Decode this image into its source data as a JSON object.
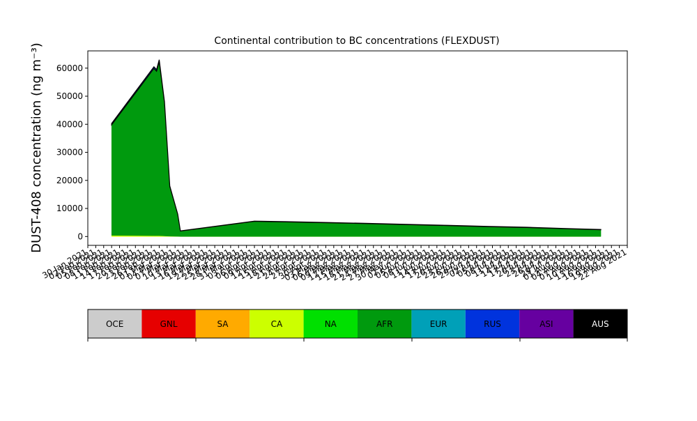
{
  "chart_data": {
    "type": "stacked_area",
    "title": "Continental contribution to BC concentrations (FLEXDUST)",
    "y_label": "DUST-408 concentration (ng m⁻³)",
    "x": [
      "2021-02-08",
      "2021-02-24",
      "2021-02-25",
      "2021-02-26",
      "2021-02-28",
      "2021-03-02",
      "2021-03-05",
      "2021-03-06",
      "2021-04-03",
      "2021-04-15",
      "2021-05-01",
      "2021-05-15",
      "2021-06-01",
      "2021-06-15",
      "2021-07-01",
      "2021-07-15",
      "2021-08-01",
      "2021-08-12"
    ],
    "series": [
      {
        "name": "CA",
        "color": "#ccff00",
        "values": [
          400,
          300,
          300,
          300,
          200,
          100,
          50,
          0,
          0,
          0,
          0,
          0,
          0,
          0,
          0,
          0,
          0,
          0
        ]
      },
      {
        "name": "AFR",
        "color": "#009a0e",
        "values": [
          39400,
          59600,
          58600,
          62100,
          47400,
          17700,
          7850,
          1950,
          5400,
          5200,
          4900,
          4600,
          4200,
          3900,
          3500,
          3200,
          2700,
          2400
        ]
      },
      {
        "name": "RUS",
        "color": "#0033dd",
        "values": [
          500,
          600,
          600,
          600,
          400,
          200,
          100,
          50,
          100,
          100,
          100,
          100,
          100,
          100,
          100,
          100,
          100,
          100
        ]
      }
    ],
    "xlim": [
      "2021-01-30",
      "2021-08-22"
    ],
    "xticks": [
      {
        "value": "2021-01-30",
        "label": "30 Jan 2021"
      },
      {
        "value": "2021-02-02",
        "label": "02 Feb 2021"
      },
      {
        "value": "2021-02-05",
        "label": "05 Feb 2021"
      },
      {
        "value": "2021-02-08",
        "label": "08 Feb 2021"
      },
      {
        "value": "2021-02-11",
        "label": "11 Feb 2021"
      },
      {
        "value": "2021-02-14",
        "label": "14 Feb 2021"
      },
      {
        "value": "2021-02-17",
        "label": "17 Feb 2021"
      },
      {
        "value": "2021-02-20",
        "label": "20 Feb 2021"
      },
      {
        "value": "2021-02-23",
        "label": "23 Feb 2021"
      },
      {
        "value": "2021-02-26",
        "label": "26 Feb 2021"
      },
      {
        "value": "2021-03-01",
        "label": "01 Mar 2021"
      },
      {
        "value": "2021-03-04",
        "label": "04 Mar 2021"
      },
      {
        "value": "2021-03-07",
        "label": "07 Mar 2021"
      },
      {
        "value": "2021-03-10",
        "label": "10 Mar 2021"
      },
      {
        "value": "2021-03-13",
        "label": "13 Mar 2021"
      },
      {
        "value": "2021-03-16",
        "label": "16 Mar 2021"
      },
      {
        "value": "2021-03-19",
        "label": "19 Mar 2021"
      },
      {
        "value": "2021-03-22",
        "label": "22 Mar 2021"
      },
      {
        "value": "2021-03-25",
        "label": "25 Mar 2021"
      },
      {
        "value": "2021-03-28",
        "label": "28 Mar 2021"
      },
      {
        "value": "2021-03-31",
        "label": "31 Mar 2021"
      },
      {
        "value": "2021-04-03",
        "label": "03 Apr 2021"
      },
      {
        "value": "2021-04-06",
        "label": "06 Apr 2021"
      },
      {
        "value": "2021-04-09",
        "label": "09 Apr 2021"
      },
      {
        "value": "2021-04-12",
        "label": "12 Apr 2021"
      },
      {
        "value": "2021-04-15",
        "label": "15 Apr 2021"
      },
      {
        "value": "2021-04-18",
        "label": "18 Apr 2021"
      },
      {
        "value": "2021-04-21",
        "label": "21 Apr 2021"
      },
      {
        "value": "2021-04-24",
        "label": "24 Apr 2021"
      },
      {
        "value": "2021-04-27",
        "label": "27 Apr 2021"
      },
      {
        "value": "2021-04-30",
        "label": "30 Apr 2021"
      },
      {
        "value": "2021-05-03",
        "label": "03 May 2021"
      },
      {
        "value": "2021-05-06",
        "label": "06 May 2021"
      },
      {
        "value": "2021-05-09",
        "label": "09 May 2021"
      },
      {
        "value": "2021-05-12",
        "label": "12 May 2021"
      },
      {
        "value": "2021-05-15",
        "label": "15 May 2021"
      },
      {
        "value": "2021-05-18",
        "label": "18 May 2021"
      },
      {
        "value": "2021-05-21",
        "label": "21 May 2021"
      },
      {
        "value": "2021-05-24",
        "label": "24 May 2021"
      },
      {
        "value": "2021-05-27",
        "label": "27 May 2021"
      },
      {
        "value": "2021-05-30",
        "label": "30 May 2021"
      },
      {
        "value": "2021-06-02",
        "label": "02 Jun 2021"
      },
      {
        "value": "2021-06-05",
        "label": "05 Jun 2021"
      },
      {
        "value": "2021-06-08",
        "label": "08 Jun 2021"
      },
      {
        "value": "2021-06-11",
        "label": "11 Jun 2021"
      },
      {
        "value": "2021-06-14",
        "label": "14 Jun 2021"
      },
      {
        "value": "2021-06-17",
        "label": "17 Jun 2021"
      },
      {
        "value": "2021-06-20",
        "label": "20 Jun 2021"
      },
      {
        "value": "2021-06-23",
        "label": "23 Jun 2021"
      },
      {
        "value": "2021-06-26",
        "label": "26 Jun 2021"
      },
      {
        "value": "2021-06-29",
        "label": "29 Jun 2021"
      },
      {
        "value": "2021-07-02",
        "label": "02 Jul 2021"
      },
      {
        "value": "2021-07-05",
        "label": "05 Jul 2021"
      },
      {
        "value": "2021-07-08",
        "label": "08 Jul 2021"
      },
      {
        "value": "2021-07-11",
        "label": "11 Jul 2021"
      },
      {
        "value": "2021-07-14",
        "label": "14 Jul 2021"
      },
      {
        "value": "2021-07-17",
        "label": "17 Jul 2021"
      },
      {
        "value": "2021-07-20",
        "label": "20 Jul 2021"
      },
      {
        "value": "2021-07-23",
        "label": "23 Jul 2021"
      },
      {
        "value": "2021-07-26",
        "label": "26 Jul 2021"
      },
      {
        "value": "2021-07-29",
        "label": "29 Jul 2021"
      },
      {
        "value": "2021-08-01",
        "label": "01 Aug 2021"
      },
      {
        "value": "2021-08-04",
        "label": "04 Aug 2021"
      },
      {
        "value": "2021-08-07",
        "label": "07 Aug 2021"
      },
      {
        "value": "2021-08-10",
        "label": "10 Aug 2021"
      },
      {
        "value": "2021-08-13",
        "label": "13 Aug 2021"
      },
      {
        "value": "2021-08-16",
        "label": "16 Aug 2021"
      },
      {
        "value": "2021-08-19",
        "label": "19 Aug 2021"
      },
      {
        "value": "2021-08-22",
        "label": "22 Aug 2021"
      }
    ],
    "ylim": [
      -3150,
      66150
    ],
    "yticks": [
      0,
      10000,
      20000,
      30000,
      40000,
      50000,
      60000
    ],
    "colorbar": {
      "names": [
        "OCE",
        "GNL",
        "SA",
        "CA",
        "NA",
        "AFR",
        "EUR",
        "RUS",
        "ASI",
        "AUS"
      ],
      "colors": [
        "#cccccc",
        "#e60000",
        "#ffaa00",
        "#ccff00",
        "#00e000",
        "#009a0e",
        "#00a0b8",
        "#0033dd",
        "#6600a0",
        "#000000"
      ]
    }
  }
}
